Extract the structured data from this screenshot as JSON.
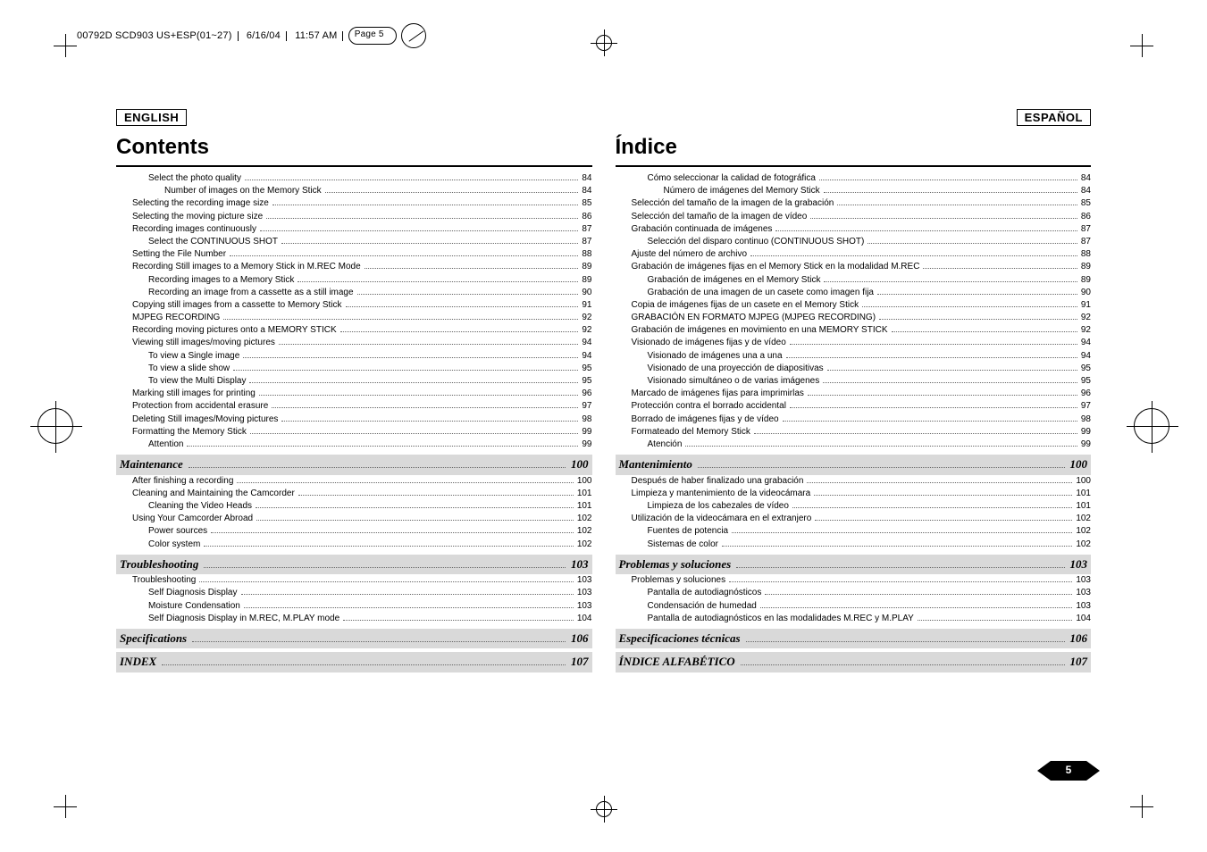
{
  "prepress": {
    "job": "00792D SCD903 US+ESP(01~27)",
    "date": "6/16/04",
    "time": "11:57 AM",
    "page": "Page 5"
  },
  "page_number": "5",
  "left": {
    "lang": "ENGLISH",
    "title": "Contents",
    "items": [
      {
        "t": "Select the photo quality",
        "p": "84",
        "i": 2
      },
      {
        "t": "Number of images on the Memory Stick",
        "p": "84",
        "i": 3
      },
      {
        "t": "Selecting the recording image size",
        "p": "85",
        "i": 1
      },
      {
        "t": "Selecting the moving picture size",
        "p": "86",
        "i": 1
      },
      {
        "t": "Recording images continuously",
        "p": "87",
        "i": 1
      },
      {
        "t": "Select the CONTINUOUS SHOT",
        "p": "87",
        "i": 2
      },
      {
        "t": "Setting the File Number",
        "p": "88",
        "i": 1
      },
      {
        "t": "Recording Still images to a Memory Stick in M.REC Mode",
        "p": "89",
        "i": 1
      },
      {
        "t": "Recording images to a Memory Stick",
        "p": "89",
        "i": 2
      },
      {
        "t": "Recording an image from a cassette as a still image",
        "p": "90",
        "i": 2
      },
      {
        "t": "Copying still images from a cassette to Memory Stick",
        "p": "91",
        "i": 1
      },
      {
        "t": "MJPEG RECORDING",
        "p": "92",
        "i": 1
      },
      {
        "t": "Recording moving pictures onto a MEMORY STICK",
        "p": "92",
        "i": 1
      },
      {
        "t": "Viewing still images/moving pictures",
        "p": "94",
        "i": 1
      },
      {
        "t": "To view a Single image",
        "p": "94",
        "i": 2
      },
      {
        "t": "To view a slide show",
        "p": "95",
        "i": 2
      },
      {
        "t": "To view the Multi Display",
        "p": "95",
        "i": 2
      },
      {
        "t": "Marking still images for printing",
        "p": "96",
        "i": 1
      },
      {
        "t": "Protection from accidental erasure",
        "p": "97",
        "i": 1
      },
      {
        "t": "Deleting Still images/Moving pictures",
        "p": "98",
        "i": 1
      },
      {
        "t": "Formatting the Memory Stick",
        "p": "99",
        "i": 1
      },
      {
        "t": "Attention",
        "p": "99",
        "i": 2
      },
      {
        "section": "Maintenance",
        "p": "100"
      },
      {
        "t": "After finishing a recording",
        "p": "100",
        "i": 1
      },
      {
        "t": "Cleaning and Maintaining the Camcorder",
        "p": "101",
        "i": 1
      },
      {
        "t": "Cleaning the Video Heads",
        "p": "101",
        "i": 2
      },
      {
        "t": "Using Your Camcorder Abroad",
        "p": "102",
        "i": 1
      },
      {
        "t": "Power sources",
        "p": "102",
        "i": 2
      },
      {
        "t": "Color system",
        "p": "102",
        "i": 2
      },
      {
        "section": "Troubleshooting",
        "p": "103"
      },
      {
        "t": "Troubleshooting",
        "p": "103",
        "i": 1
      },
      {
        "t": "Self Diagnosis Display",
        "p": "103",
        "i": 2
      },
      {
        "t": "Moisture Condensation",
        "p": "103",
        "i": 2
      },
      {
        "t": "Self Diagnosis Display in M.REC, M.PLAY mode",
        "p": "104",
        "i": 2
      },
      {
        "section": "Specifications",
        "p": "106"
      },
      {
        "section": "INDEX",
        "p": "107"
      }
    ]
  },
  "right": {
    "lang": "ESPAÑOL",
    "title": "Índice",
    "items": [
      {
        "t": "Cómo seleccionar la calidad de fotográfica",
        "p": "84",
        "i": 2
      },
      {
        "t": "Número de imágenes del Memory Stick",
        "p": "84",
        "i": 3
      },
      {
        "t": "Selección del tamaño de la imagen de la grabación",
        "p": "85",
        "i": 1
      },
      {
        "t": "Selección del tamaño de la imagen de vídeo",
        "p": "86",
        "i": 1
      },
      {
        "t": "Grabación continuada de imágenes",
        "p": "87",
        "i": 1
      },
      {
        "t": "Selección del disparo continuo (CONTINUOUS SHOT)",
        "p": "87",
        "i": 2
      },
      {
        "t": "Ajuste del número de archivo",
        "p": "88",
        "i": 1
      },
      {
        "t": "Grabación de imágenes fijas en el Memory Stick en la modalidad M.REC",
        "p": "89",
        "i": 1
      },
      {
        "t": "Grabación de imágenes en el Memory Stick",
        "p": "89",
        "i": 2
      },
      {
        "t": "Grabación de una imagen de un casete como imagen fija",
        "p": "90",
        "i": 2
      },
      {
        "t": "Copia de imágenes fijas de un casete en el Memory Stick",
        "p": "91",
        "i": 1
      },
      {
        "t": "GRABACIÓN EN FORMATO MJPEG (MJPEG RECORDING)",
        "p": "92",
        "i": 1
      },
      {
        "t": "Grabación de imágenes en movimiento en una MEMORY STICK",
        "p": "92",
        "i": 1
      },
      {
        "t": "Visionado de imágenes fijas y de vídeo",
        "p": "94",
        "i": 1
      },
      {
        "t": "Visionado de imágenes una a una",
        "p": "94",
        "i": 2
      },
      {
        "t": "Visionado de una proyección de diapositivas",
        "p": "95",
        "i": 2
      },
      {
        "t": "Visionado simultáneo o de varias imágenes",
        "p": "95",
        "i": 2
      },
      {
        "t": "Marcado de imágenes fijas para imprimirlas",
        "p": "96",
        "i": 1
      },
      {
        "t": "Protección contra el borrado accidental",
        "p": "97",
        "i": 1
      },
      {
        "t": "Borrado de imágenes fijas y de vídeo",
        "p": "98",
        "i": 1
      },
      {
        "t": "Formateado del Memory Stick",
        "p": "99",
        "i": 1
      },
      {
        "t": "Atención",
        "p": "99",
        "i": 2
      },
      {
        "section": "Mantenimiento",
        "p": "100"
      },
      {
        "t": "Después de haber finalizado una grabación",
        "p": "100",
        "i": 1
      },
      {
        "t": "Limpieza y mantenimiento de la videocámara",
        "p": "101",
        "i": 1
      },
      {
        "t": "Limpieza de los cabezales de vídeo",
        "p": "101",
        "i": 2
      },
      {
        "t": "Utilización de la videocámara en el extranjero",
        "p": "102",
        "i": 1
      },
      {
        "t": "Fuentes de potencia",
        "p": "102",
        "i": 2
      },
      {
        "t": "Sistemas de color",
        "p": "102",
        "i": 2
      },
      {
        "section": "Problemas y soluciones",
        "p": "103"
      },
      {
        "t": "Problemas y soluciones",
        "p": "103",
        "i": 1
      },
      {
        "t": "Pantalla de autodiagnósticos",
        "p": "103",
        "i": 2
      },
      {
        "t": "Condensación de humedad",
        "p": "103",
        "i": 2
      },
      {
        "t": "Pantalla de autodiagnósticos en las modalidades M.REC y M.PLAY",
        "p": "104",
        "i": 2
      },
      {
        "section": "Especificaciones técnicas",
        "p": "106"
      },
      {
        "section": "ÍNDICE ALFABÉTICO",
        "p": "107"
      }
    ]
  }
}
